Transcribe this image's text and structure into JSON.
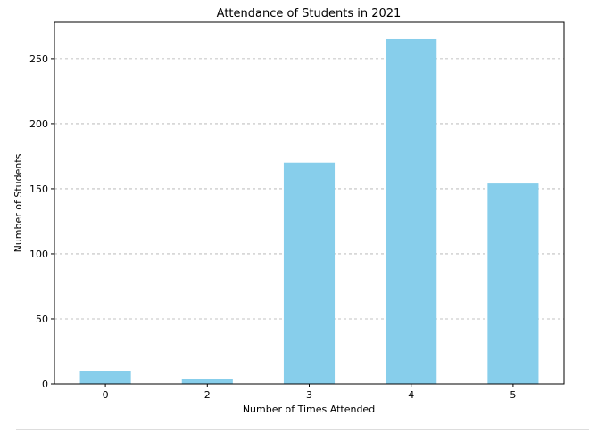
{
  "chart_data": {
    "type": "bar",
    "title": "Attendance of Students in 2021",
    "xlabel": "Number of Times Attended",
    "ylabel": "Number of Students",
    "categories": [
      "0",
      "2",
      "3",
      "4",
      "5"
    ],
    "values": [
      10,
      4,
      170,
      265,
      154
    ],
    "ylim": [
      0,
      278
    ],
    "yticks": [
      0,
      50,
      100,
      150,
      200,
      250
    ],
    "grid": "y-dashed",
    "bar_color": "#87ceeb",
    "grid_color": "#b0b0b0"
  }
}
